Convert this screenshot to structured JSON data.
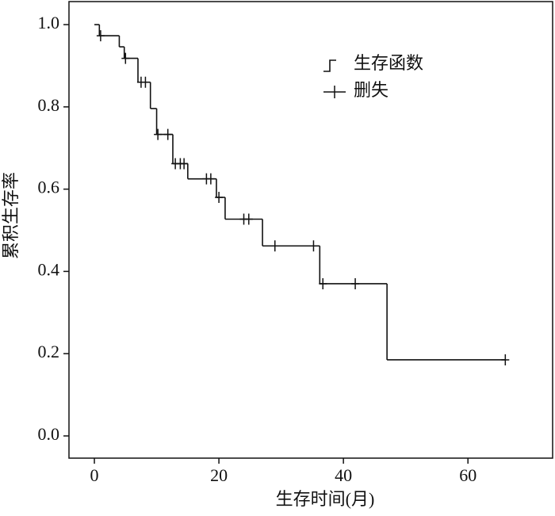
{
  "chart_data": {
    "type": "survival",
    "x_label": "生存时间(月)",
    "y_label": "累积生存率",
    "xlim": [
      -4.08,
      73.6
    ],
    "ylim": [
      -0.054,
      1.056
    ],
    "xticks": [
      0,
      20,
      40,
      60
    ],
    "yticks": [
      {
        "value": 0,
        "label": "0.0"
      },
      0.2,
      0.4,
      0.6,
      0.8,
      {
        "value": 1,
        "label": "1.0"
      }
    ],
    "legend": "upper-right",
    "series": [
      {
        "name": "生存函数",
        "color": "#111111",
        "x": [
          0,
          0.8,
          4,
          4.8,
          7,
          9,
          10,
          12.6,
          15,
          19.6,
          21,
          27,
          36.2,
          47
        ],
        "values": [
          1.0,
          0.973,
          0.946,
          0.918,
          0.86,
          0.796,
          0.733,
          0.662,
          0.625,
          0.58,
          0.527,
          0.462,
          0.37,
          0.185
        ]
      },
      {
        "name": "删失",
        "color": "#111111",
        "x": [
          1,
          5,
          7.5,
          8.2,
          10.2,
          11.8,
          13,
          13.8,
          14.4,
          18,
          18.7,
          20,
          24,
          24.8,
          29,
          35.2,
          36.7,
          41.9,
          66
        ],
        "values": [
          0.973,
          0.918,
          0.86,
          0.86,
          0.733,
          0.733,
          0.662,
          0.662,
          0.662,
          0.625,
          0.625,
          0.58,
          0.527,
          0.527,
          0.462,
          0.462,
          0.37,
          0.37,
          0.185
        ]
      }
    ]
  }
}
